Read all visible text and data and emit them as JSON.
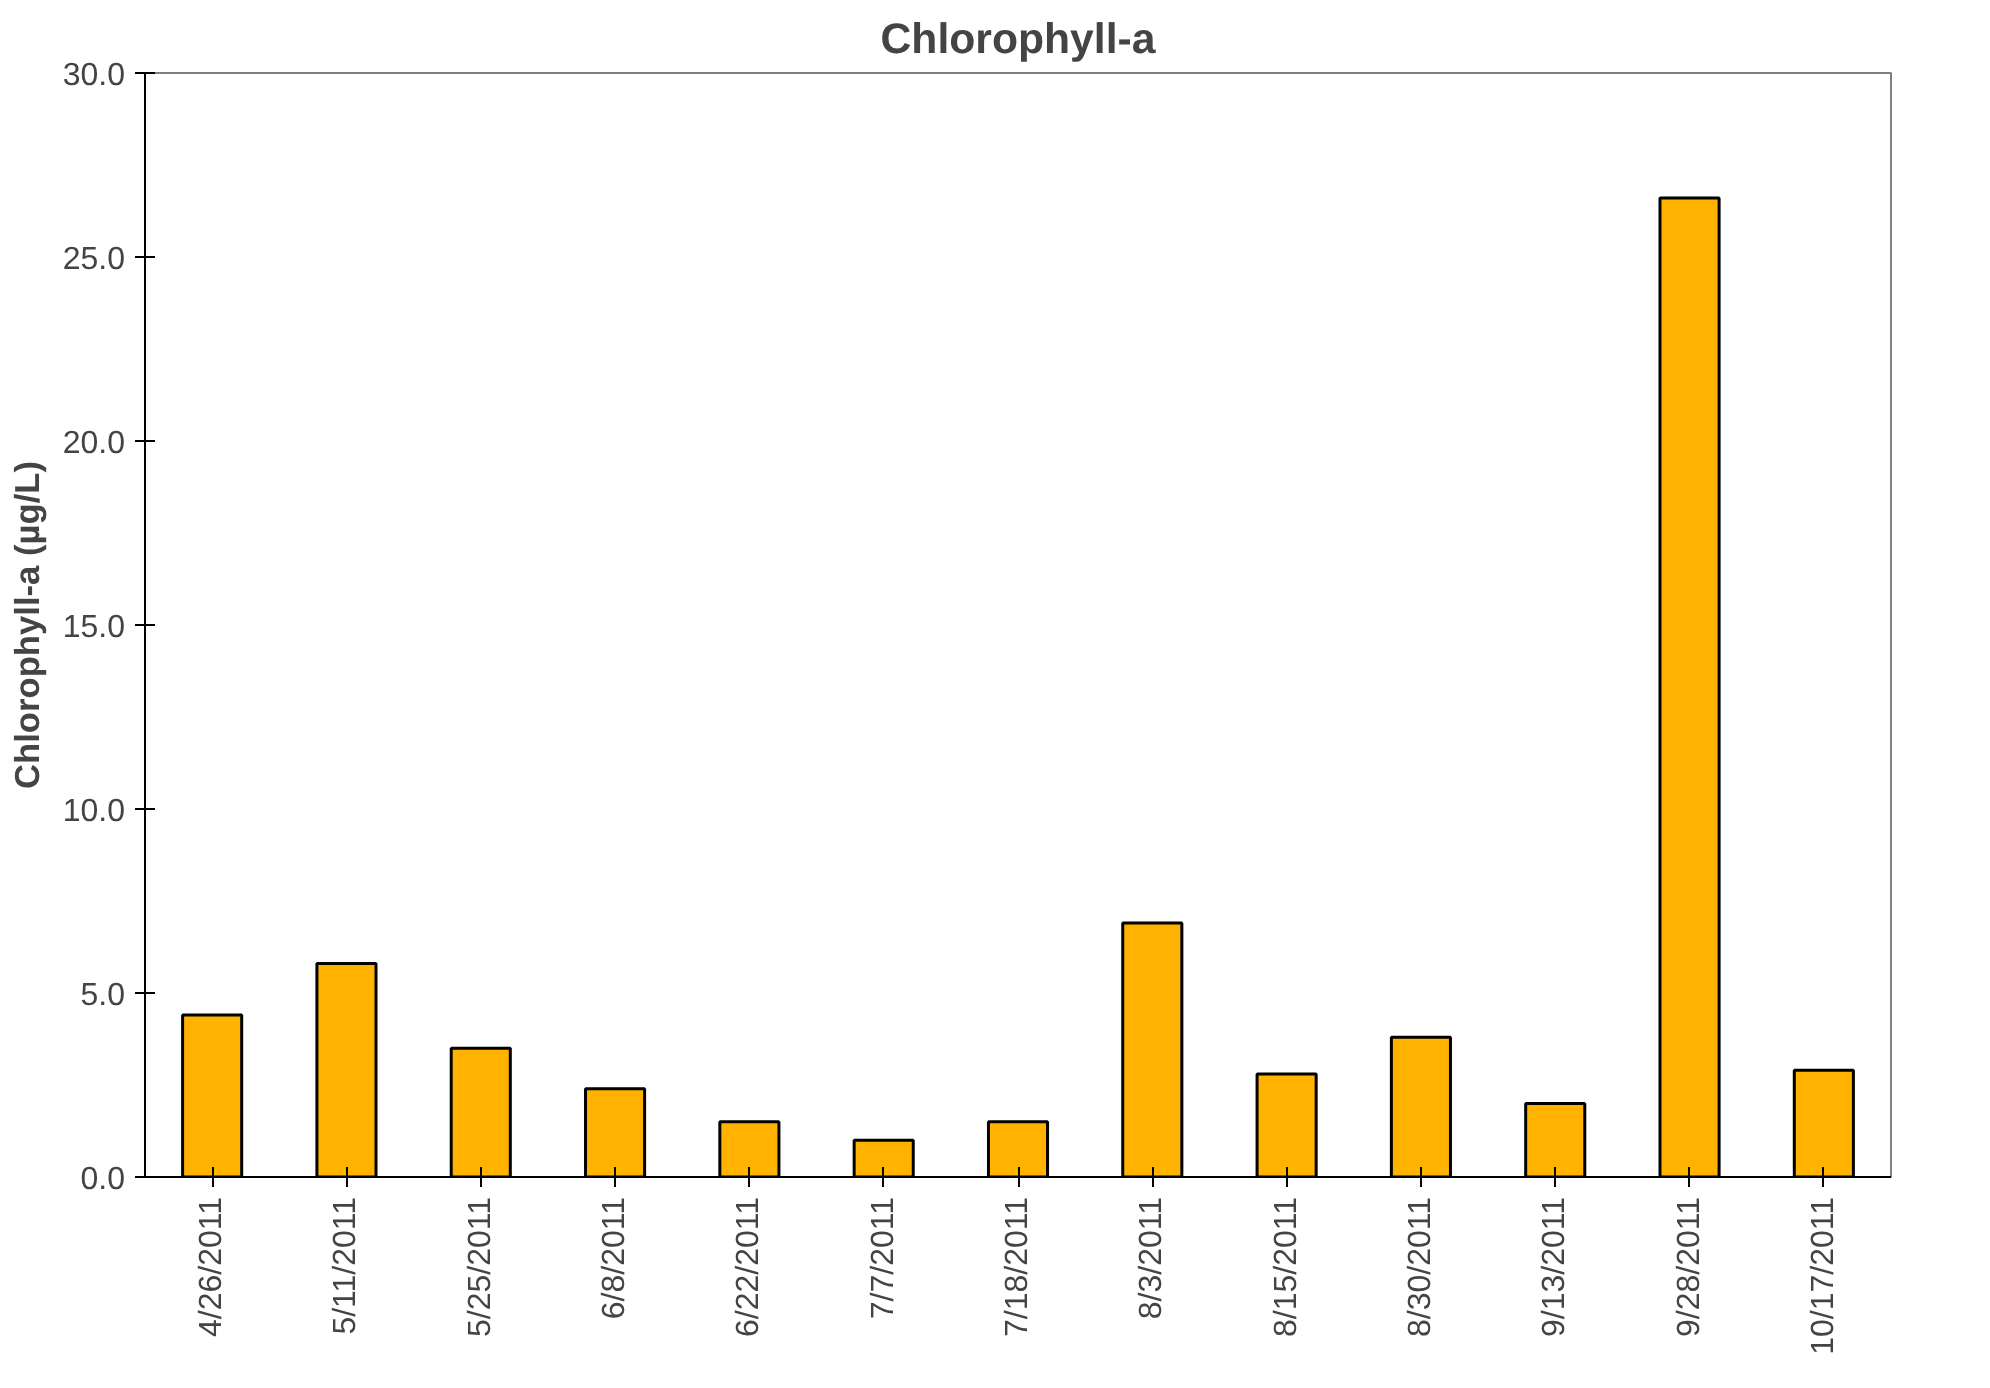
{
  "chart_data": {
    "type": "bar",
    "title": "Chlorophyll-a",
    "ylabel": "Chlorophyll-a (µg/L)",
    "categories": [
      "4/26/2011",
      "5/11/2011",
      "5/25/2011",
      "6/8/2011",
      "6/22/2011",
      "7/7/2011",
      "7/18/2011",
      "8/3/2011",
      "8/15/2011",
      "8/30/2011",
      "9/13/2011",
      "9/28/2011",
      "10/17/2011"
    ],
    "values": [
      4.4,
      5.8,
      3.5,
      2.4,
      1.5,
      1.0,
      1.5,
      6.9,
      2.8,
      3.8,
      2.0,
      26.6,
      2.9
    ],
    "color": "#ffb300",
    "ylim": [
      0,
      30
    ],
    "yticks": [
      {
        "value": 0,
        "label": "0.0"
      },
      {
        "value": 5,
        "label": "5.0"
      },
      {
        "value": 10,
        "label": "10.0"
      },
      {
        "value": 15,
        "label": "15.0"
      },
      {
        "value": 20,
        "label": "20.0"
      },
      {
        "value": 25,
        "label": "25.0"
      },
      {
        "value": 30,
        "label": "30.0"
      }
    ],
    "grid": false
  }
}
